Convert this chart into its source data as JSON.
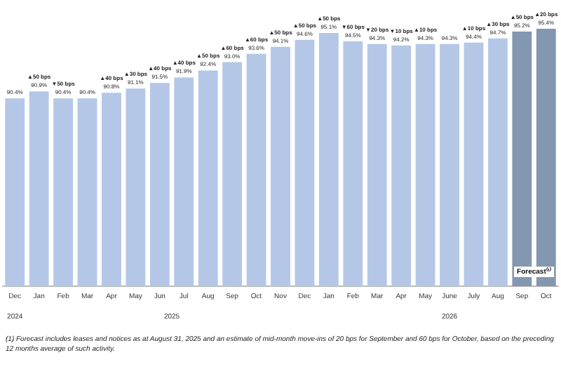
{
  "chart_data": {
    "type": "bar",
    "categories": [
      "Dec",
      "Jan",
      "Feb",
      "Mar",
      "Apr",
      "May",
      "Jun",
      "Jul",
      "Aug",
      "Sep",
      "Oct",
      "Nov",
      "Dec",
      "Jan",
      "Feb",
      "Mar",
      "Apr",
      "May",
      "June",
      "July",
      "Aug",
      "Sep",
      "Oct"
    ],
    "values": [
      90.4,
      90.9,
      90.4,
      90.4,
      90.8,
      91.1,
      91.5,
      91.9,
      92.4,
      93.0,
      93.6,
      94.1,
      94.6,
      95.1,
      94.5,
      94.3,
      94.2,
      94.3,
      94.3,
      94.4,
      94.7,
      95.2,
      95.4
    ],
    "value_labels": [
      "90.4%",
      "▲50 bps\n90.9%",
      "▼50 bps\n90.4%",
      "90.4%",
      "▲40 bps\n90.8%",
      "▲30 bps\n91.1%",
      "▲40 bps\n91.5%",
      "▲40 bps\n91.9%",
      "▲50 bps\n92.4%",
      "▲60 bps\n93.0%",
      "▲60 bps\n93.6%",
      "▲50 bps\n94.1%",
      "▲50 bps\n94.6%",
      "▲50 bps\n95.1%",
      "▼60 bps\n94.5%",
      "▼20 bps\n94.3%",
      "▼10 bps\n94.2%",
      "▲10 bps\n94.3%",
      "94.3%",
      "▲10 bps\n94.4%",
      "▲30 bps\n94.7%",
      "▲50 bps\n95.2%",
      "▲20 bps\n95.4%"
    ],
    "colors": [
      "#b4c7e7",
      "#b4c7e7",
      "#b4c7e7",
      "#b4c7e7",
      "#b4c7e7",
      "#b4c7e7",
      "#b4c7e7",
      "#b4c7e7",
      "#b4c7e7",
      "#b4c7e7",
      "#b4c7e7",
      "#b4c7e7",
      "#b4c7e7",
      "#b4c7e7",
      "#b4c7e7",
      "#b4c7e7",
      "#b4c7e7",
      "#b4c7e7",
      "#b4c7e7",
      "#b4c7e7",
      "#b4c7e7",
      "#8497b0",
      "#8497b0"
    ],
    "tick_labels": "x",
    "annotations": [
      "2024",
      "2025",
      "2026",
      "Forecast⁽¹⁾",
      "(1) Forecast includes leases and notices as at August 31, 2025 and an estimate of mid-month move-ins of 20 bps for September and 60 bps for October, based on the preceding 12 months average of such activity."
    ]
  }
}
